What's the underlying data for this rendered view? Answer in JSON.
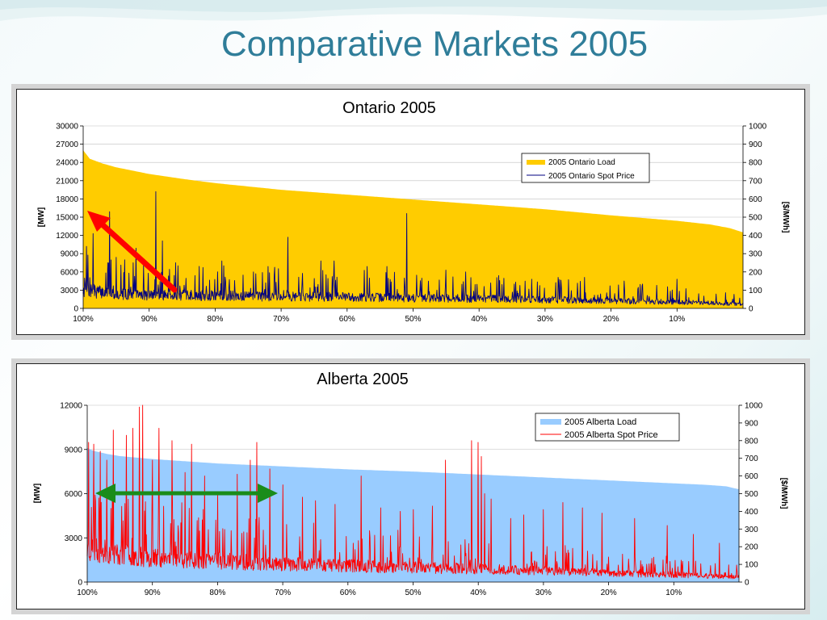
{
  "slide": {
    "title": "Comparative Markets 2005"
  },
  "chart_data": [
    {
      "type": "area",
      "title": "Ontario 2005",
      "ylabel": "[MW]",
      "y2label": "[$/MWh]",
      "x_tick_labels": [
        "100%",
        "90%",
        "80%",
        "70%",
        "60%",
        "50%",
        "40%",
        "30%",
        "20%",
        "10%"
      ],
      "y_ticks": [
        0,
        3000,
        6000,
        9000,
        12000,
        15000,
        18000,
        21000,
        24000,
        27000,
        30000
      ],
      "y2_ticks": [
        0,
        100,
        200,
        300,
        400,
        500,
        600,
        700,
        800,
        900,
        1000
      ],
      "ylim": [
        0,
        30000
      ],
      "y2lim": [
        0,
        1000
      ],
      "legend_placement": "upper-right",
      "grid": true,
      "series": [
        {
          "name": "2005 Ontario Load",
          "axis": "left",
          "kind": "area",
          "color": "#ffcc00",
          "x_percent": [
            100,
            99,
            97,
            95,
            90,
            85,
            80,
            70,
            60,
            50,
            40,
            30,
            20,
            10,
            5,
            2,
            0
          ],
          "values": [
            26000,
            24600,
            23800,
            23200,
            22100,
            21300,
            20600,
            19500,
            18700,
            17900,
            17100,
            16300,
            15300,
            14400,
            13800,
            13200,
            12500
          ]
        },
        {
          "name": "2005 Ontario Spot Price",
          "axis": "right",
          "kind": "line",
          "color": "#000080",
          "baseline_x_percent": [
            100,
            95,
            90,
            80,
            70,
            60,
            50,
            40,
            30,
            20,
            10,
            0
          ],
          "baseline_values": [
            110,
            85,
            80,
            75,
            70,
            68,
            62,
            58,
            52,
            45,
            38,
            25
          ],
          "spikes_x_percent": [
            99.5,
            98.5,
            96,
            95,
            92,
            89,
            88,
            86,
            79,
            72,
            69,
            64,
            62,
            57,
            54,
            51,
            45,
            42,
            37,
            32,
            28,
            24,
            18,
            10
          ],
          "spikes_values": [
            340,
            410,
            530,
            280,
            330,
            640,
            370,
            250,
            260,
            230,
            390,
            260,
            260,
            230,
            230,
            520,
            210,
            200,
            180,
            160,
            170,
            170,
            150,
            160
          ]
        }
      ]
    },
    {
      "type": "area",
      "title": "Alberta 2005",
      "ylabel": "[MW]",
      "y2label": "[$/MWh]",
      "x_tick_labels": [
        "100%",
        "90%",
        "80%",
        "70%",
        "60%",
        "50%",
        "40%",
        "30%",
        "20%",
        "10%"
      ],
      "y_ticks": [
        0,
        3000,
        6000,
        9000,
        12000
      ],
      "y2_ticks": [
        0,
        100,
        200,
        300,
        400,
        500,
        600,
        700,
        800,
        900,
        1000
      ],
      "ylim": [
        0,
        12000
      ],
      "y2lim": [
        0,
        1000
      ],
      "legend_placement": "upper-right",
      "grid": true,
      "series": [
        {
          "name": "2005 Alberta Load",
          "axis": "left",
          "kind": "area",
          "color": "#99ccff",
          "x_percent": [
            100,
            99,
            97,
            95,
            90,
            85,
            80,
            70,
            60,
            50,
            40,
            30,
            20,
            10,
            5,
            2,
            0
          ],
          "values": [
            9100,
            8900,
            8700,
            8550,
            8350,
            8200,
            8050,
            7850,
            7650,
            7500,
            7300,
            7100,
            6900,
            6700,
            6600,
            6500,
            6300
          ]
        },
        {
          "name": "2005 Alberta Spot Price",
          "axis": "right",
          "kind": "line",
          "color": "#ff0000",
          "baseline_x_percent": [
            100,
            95,
            90,
            80,
            70,
            60,
            50,
            40,
            30,
            20,
            10,
            0
          ],
          "baseline_values": [
            200,
            170,
            150,
            130,
            110,
            100,
            90,
            80,
            70,
            55,
            45,
            30
          ],
          "spikes_x_percent": [
            99.8,
            99,
            98,
            97,
            96,
            94,
            93,
            92,
            91.5,
            90,
            89,
            87,
            85,
            84,
            82,
            80,
            77,
            75,
            74,
            72,
            70,
            67,
            65,
            62,
            58,
            55,
            52,
            50,
            47,
            45,
            41,
            40,
            39.5,
            39,
            38,
            35,
            33,
            30,
            27,
            24,
            21,
            16,
            11,
            7,
            3
          ],
          "spikes_values": [
            790,
            780,
            740,
            690,
            860,
            830,
            870,
            990,
            1000,
            690,
            870,
            800,
            620,
            780,
            600,
            500,
            610,
            690,
            790,
            640,
            550,
            480,
            460,
            440,
            600,
            420,
            400,
            410,
            430,
            690,
            800,
            790,
            710,
            500,
            470,
            360,
            380,
            410,
            450,
            420,
            390,
            360,
            320,
            270,
            220
          ]
        }
      ]
    }
  ],
  "legend": {
    "on_load": "2005 Ontario Load",
    "on_price": "2005 Ontario Spot Price",
    "ab_load": "2005 Alberta Load",
    "ab_price": "2005 Alberta Spot Price"
  }
}
